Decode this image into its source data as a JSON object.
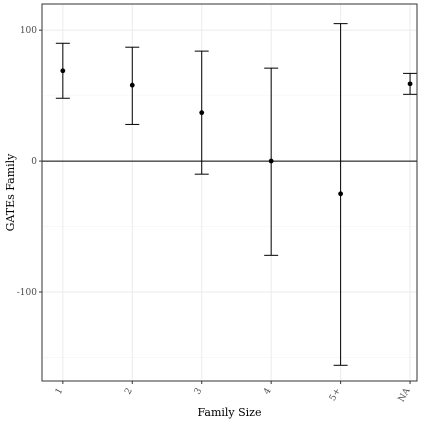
{
  "chart_data": {
    "type": "scatter",
    "xlabel": "Family Size",
    "ylabel": "GATEs Family",
    "categories": [
      "1",
      "2",
      "3",
      "4",
      "5+",
      "NA"
    ],
    "series": [
      {
        "estimate": [
          69,
          58,
          37,
          0,
          -25,
          59
        ],
        "lower": [
          48,
          28,
          -10,
          -72,
          -156,
          51
        ],
        "upper": [
          90,
          87,
          84,
          71,
          105,
          67
        ]
      }
    ],
    "ylim": [
      -168,
      120
    ],
    "yticks": [
      -100,
      0,
      100
    ],
    "reference_line": 0,
    "grid": true,
    "colors": {
      "background": "#ffffff",
      "grid_major": "#ebebeb",
      "grid_minor": "#f4f4f4",
      "points": "#000000",
      "border": "#333333"
    }
  }
}
